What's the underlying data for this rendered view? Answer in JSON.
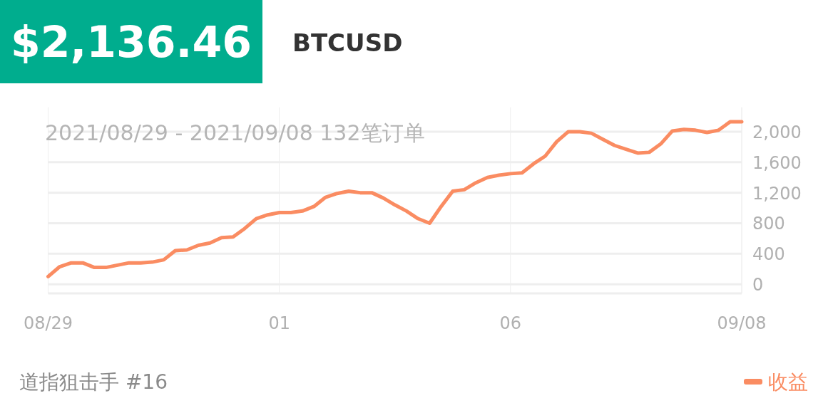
{
  "chart_data": {
    "type": "line",
    "title": "BTCUSD",
    "subtitle": "2021/08/29 - 2021/09/08  132笔订单",
    "annotations": [
      "$2,136.46",
      "道指狙击手 #16"
    ],
    "categories": [
      "08/29",
      null,
      null,
      null,
      null,
      null,
      null,
      null,
      null,
      null,
      null,
      null,
      null,
      null,
      null,
      null,
      null,
      null,
      null,
      null,
      "01",
      null,
      null,
      null,
      null,
      null,
      null,
      null,
      null,
      null,
      null,
      null,
      null,
      null,
      null,
      null,
      null,
      null,
      null,
      null,
      "06",
      null,
      null,
      null,
      null,
      null,
      null,
      null,
      null,
      null,
      null,
      null,
      null,
      null,
      null,
      null,
      null,
      null,
      null,
      null,
      "09/08"
    ],
    "series": [
      {
        "name": "收益",
        "color": "#fa8c62",
        "values": [
          100,
          230,
          280,
          280,
          220,
          220,
          250,
          280,
          280,
          290,
          320,
          440,
          450,
          510,
          540,
          610,
          620,
          730,
          860,
          910,
          940,
          940,
          960,
          1020,
          1140,
          1190,
          1220,
          1200,
          1200,
          1130,
          1040,
          960,
          860,
          800,
          1020,
          1220,
          1240,
          1330,
          1400,
          1430,
          1450,
          1460,
          1580,
          1680,
          1870,
          2000,
          2000,
          1980,
          1900,
          1820,
          1770,
          1720,
          1730,
          1840,
          2010,
          2030,
          2020,
          1990,
          2020,
          2130,
          2130
        ]
      }
    ],
    "ylim": [
      -120,
      2320
    ],
    "yticks": [
      {
        "value": 0,
        "label": "0"
      },
      {
        "value": 400,
        "label": "400"
      },
      {
        "value": 800,
        "label": "800"
      },
      {
        "value": 1200,
        "label": "1,200"
      },
      {
        "value": 1600,
        "label": "1,600"
      },
      {
        "value": 2000,
        "label": "2,000"
      }
    ],
    "grid": true,
    "legend": "bottom right"
  }
}
